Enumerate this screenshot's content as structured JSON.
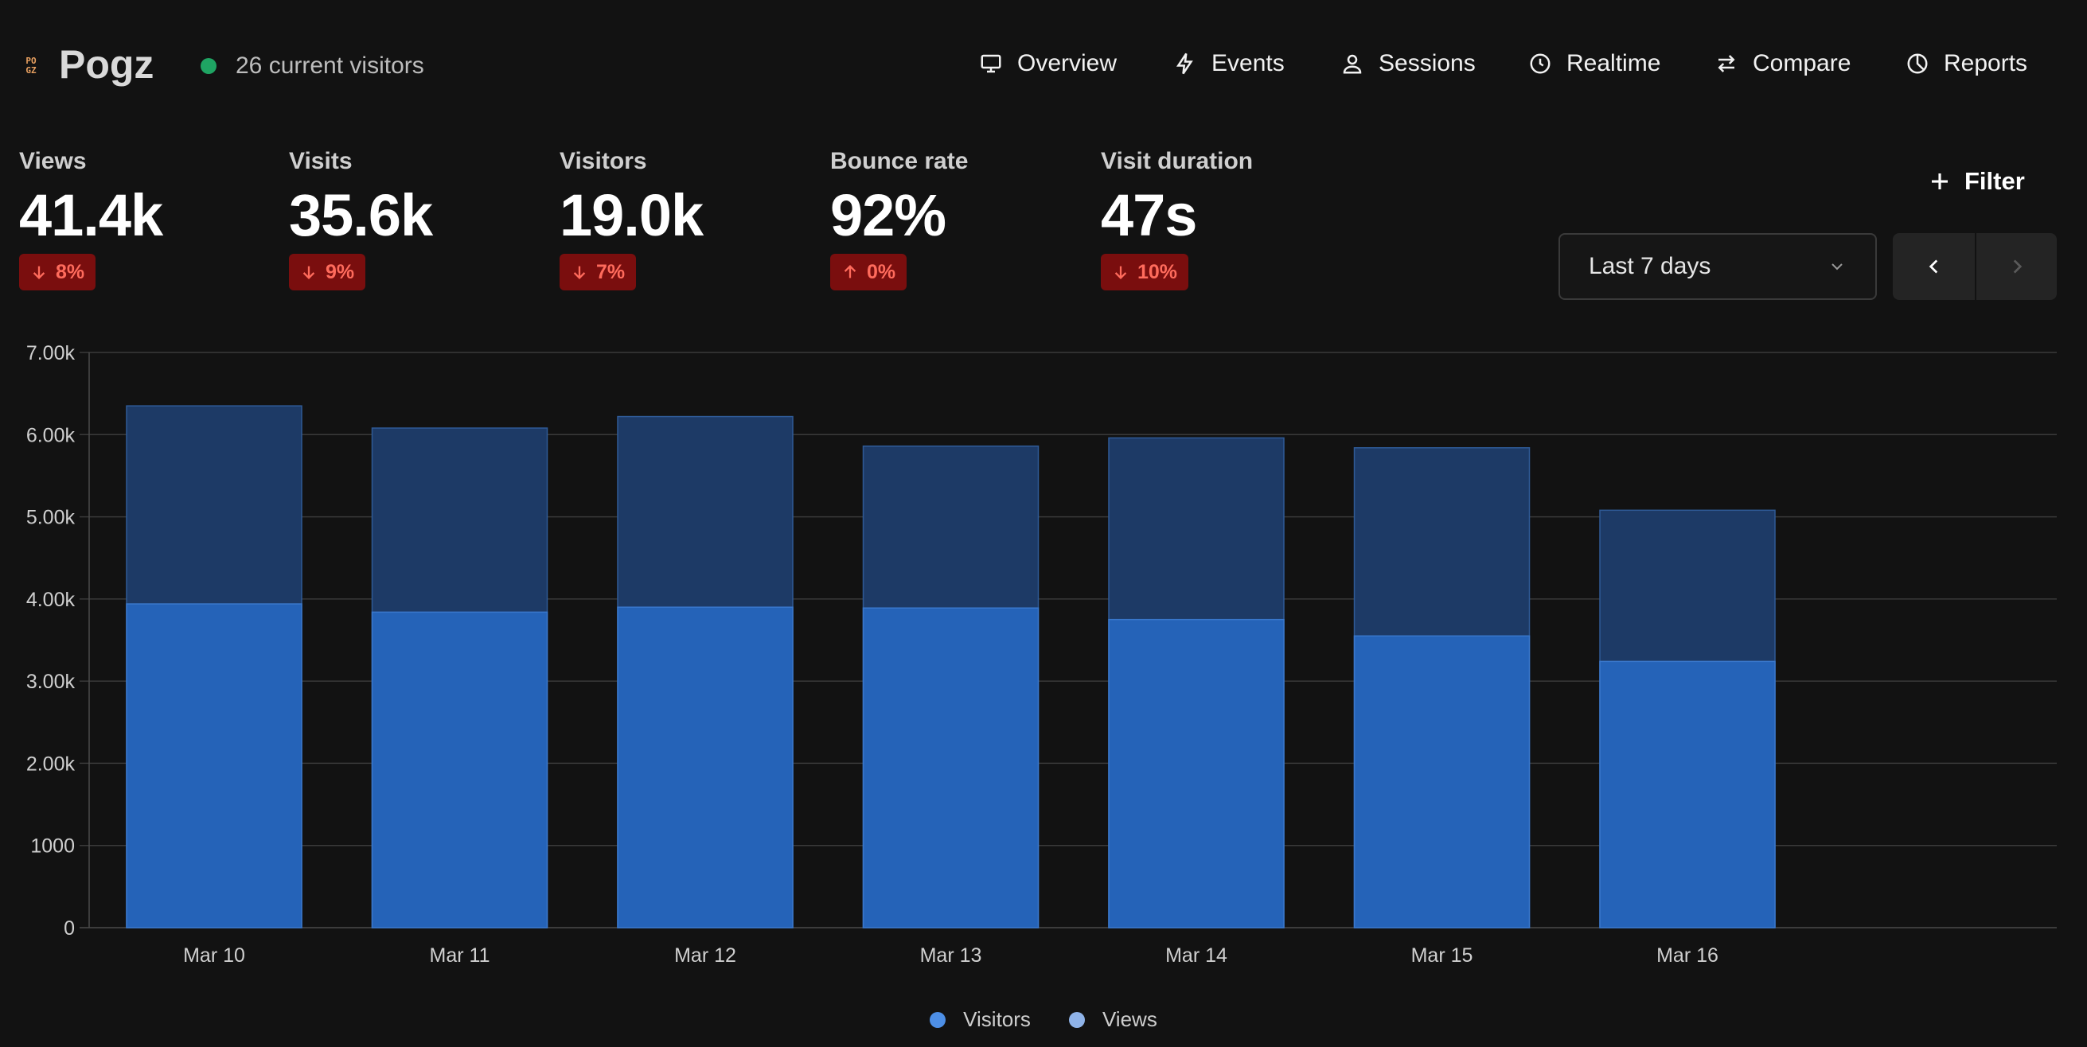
{
  "header": {
    "logo_mark_top": "PO",
    "logo_mark_bottom": "GZ",
    "app_name": "Pogz",
    "current_visitors": "26 current visitors",
    "nav": [
      {
        "label": "Overview",
        "icon": "monitor-icon"
      },
      {
        "label": "Events",
        "icon": "lightning-icon"
      },
      {
        "label": "Sessions",
        "icon": "user-icon"
      },
      {
        "label": "Realtime",
        "icon": "clock-icon"
      },
      {
        "label": "Compare",
        "icon": "arrows-swap-icon"
      },
      {
        "label": "Reports",
        "icon": "pie-chart-icon"
      }
    ]
  },
  "metrics": [
    {
      "label": "Views",
      "value": "41.4k",
      "change": "8%",
      "direction": "down"
    },
    {
      "label": "Visits",
      "value": "35.6k",
      "change": "9%",
      "direction": "down"
    },
    {
      "label": "Visitors",
      "value": "19.0k",
      "change": "7%",
      "direction": "down"
    },
    {
      "label": "Bounce rate",
      "value": "92%",
      "change": "0%",
      "direction": "up"
    },
    {
      "label": "Visit duration",
      "value": "47s",
      "change": "10%",
      "direction": "down"
    }
  ],
  "controls": {
    "filter_label": "Filter",
    "date_range": "Last 7 days"
  },
  "colors": {
    "background": "#121212",
    "visitors_bar": "#2563b8",
    "views_bar": "#1d3a66",
    "badge_bg": "#7a0e0e",
    "badge_text": "#ff6b5c",
    "live_dot": "#1fa463"
  },
  "chart_data": {
    "type": "bar",
    "stacked": "overlay",
    "categories": [
      "Mar 10",
      "Mar 11",
      "Mar 12",
      "Mar 13",
      "Mar 14",
      "Mar 15",
      "Mar 16"
    ],
    "series": [
      {
        "name": "Visitors",
        "values": [
          3940,
          3840,
          3900,
          3890,
          3750,
          3550,
          3240
        ],
        "color": "#2563b8"
      },
      {
        "name": "Views",
        "values": [
          6350,
          6080,
          6220,
          5860,
          5960,
          5840,
          5080
        ],
        "color": "#1d3a66"
      }
    ],
    "ylim": [
      0,
      7000
    ],
    "yticks": [
      0,
      1000,
      2000,
      3000,
      4000,
      5000,
      6000,
      7000
    ],
    "ytick_labels": [
      "0",
      "1000",
      "2.00k",
      "3.00k",
      "4.00k",
      "5.00k",
      "6.00k",
      "7.00k"
    ],
    "grid": true,
    "legend_position": "bottom-center"
  }
}
